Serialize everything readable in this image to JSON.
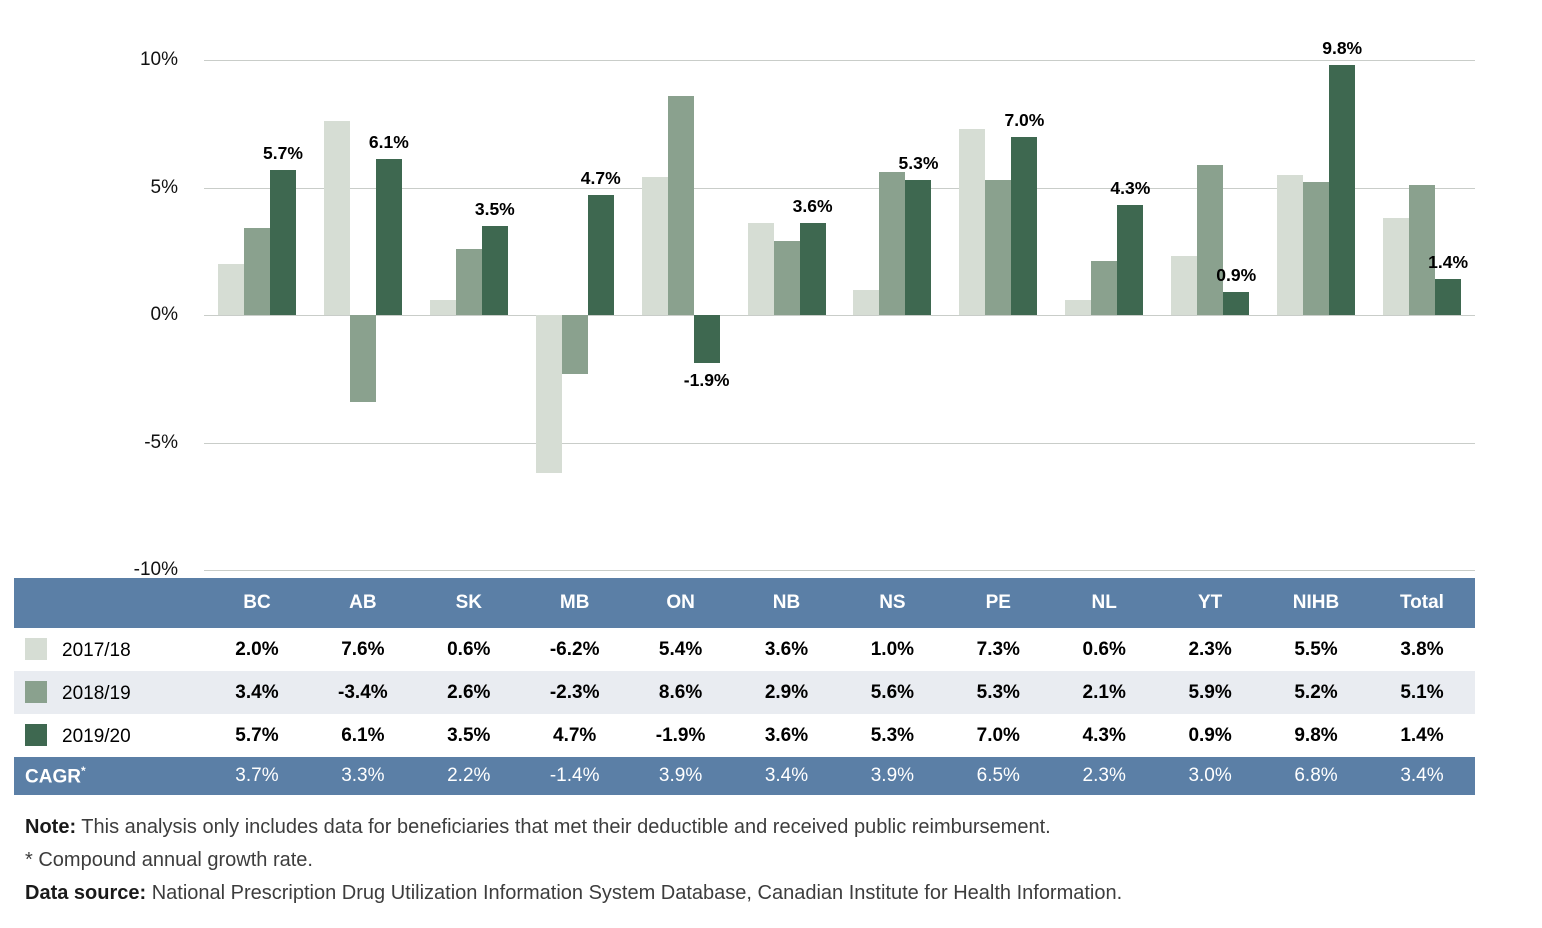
{
  "chart_data": {
    "type": "bar",
    "categories": [
      "BC",
      "AB",
      "SK",
      "MB",
      "ON",
      "NB",
      "NS",
      "PE",
      "NL",
      "YT",
      "NIHB",
      "Total"
    ],
    "series": [
      {
        "name": "2017/18",
        "color": "#d6ddd4",
        "values": [
          2.0,
          7.6,
          0.6,
          -6.2,
          5.4,
          3.6,
          1.0,
          7.3,
          0.6,
          2.3,
          5.5,
          3.8
        ]
      },
      {
        "name": "2018/19",
        "color": "#8aa18e",
        "values": [
          3.4,
          -3.4,
          2.6,
          -2.3,
          8.6,
          2.9,
          5.6,
          5.3,
          2.1,
          5.9,
          5.2,
          5.1
        ]
      },
      {
        "name": "2019/20",
        "color": "#3e6850",
        "values": [
          5.7,
          6.1,
          3.5,
          4.7,
          -1.9,
          3.6,
          5.3,
          7.0,
          4.3,
          0.9,
          9.8,
          1.4
        ]
      }
    ],
    "labeled_series_index": 2,
    "data_labels": [
      "5.7%",
      "6.1%",
      "3.5%",
      "4.7%",
      "-1.9%",
      "3.6%",
      "5.3%",
      "7.0%",
      "4.3%",
      "0.9%",
      "9.8%",
      "1.4%"
    ],
    "title": "",
    "xlabel": "",
    "ylabel": "",
    "ylim": [
      -10,
      10
    ],
    "grid": true,
    "yticks": [
      {
        "value": 10,
        "label": "10%"
      },
      {
        "value": 5,
        "label": "5%"
      },
      {
        "value": 0,
        "label": "0%"
      },
      {
        "value": -5,
        "label": "-5%"
      },
      {
        "value": -10,
        "label": "-10%"
      }
    ]
  },
  "table": {
    "header": [
      "",
      "BC",
      "AB",
      "SK",
      "MB",
      "ON",
      "NB",
      "NS",
      "PE",
      "NL",
      "YT",
      "NIHB",
      "Total"
    ],
    "rows": [
      {
        "label": "2017/18",
        "values": [
          "2.0%",
          "7.6%",
          "0.6%",
          "-6.2%",
          "5.4%",
          "3.6%",
          "1.0%",
          "7.3%",
          "0.6%",
          "2.3%",
          "5.5%",
          "3.8%"
        ]
      },
      {
        "label": "2018/19",
        "values": [
          "3.4%",
          "-3.4%",
          "2.6%",
          "-2.3%",
          "8.6%",
          "2.9%",
          "5.6%",
          "5.3%",
          "2.1%",
          "5.9%",
          "5.2%",
          "5.1%"
        ]
      },
      {
        "label": "2019/20",
        "values": [
          "5.7%",
          "6.1%",
          "3.5%",
          "4.7%",
          "-1.9%",
          "3.6%",
          "5.3%",
          "7.0%",
          "4.3%",
          "0.9%",
          "9.8%",
          "1.4%"
        ]
      }
    ],
    "cagr": {
      "label": "CAGR",
      "superscript": "*",
      "values": [
        "3.7%",
        "3.3%",
        "2.2%",
        "-1.4%",
        "3.9%",
        "3.4%",
        "3.9%",
        "6.5%",
        "2.3%",
        "3.0%",
        "6.8%",
        "3.4%"
      ]
    }
  },
  "footnotes": {
    "note_label": "Note:",
    "note_text": " This analysis only includes data for beneficiaries that met their deductible and received public reimbursement.",
    "asterisk_text": "* Compound annual growth rate.",
    "source_label": "Data source:",
    "source_text": " National Prescription Drug Utilization Information System Database, Canadian Institute for Health Information."
  },
  "colors": {
    "series_2017_18": "#d6ddd4",
    "series_2018_19": "#8aa18e",
    "series_2019_20": "#3e6850",
    "table_header_blue": "#5b7fa6",
    "alt_row": "#e9ecf1",
    "gridline": "#c9cdc9"
  }
}
